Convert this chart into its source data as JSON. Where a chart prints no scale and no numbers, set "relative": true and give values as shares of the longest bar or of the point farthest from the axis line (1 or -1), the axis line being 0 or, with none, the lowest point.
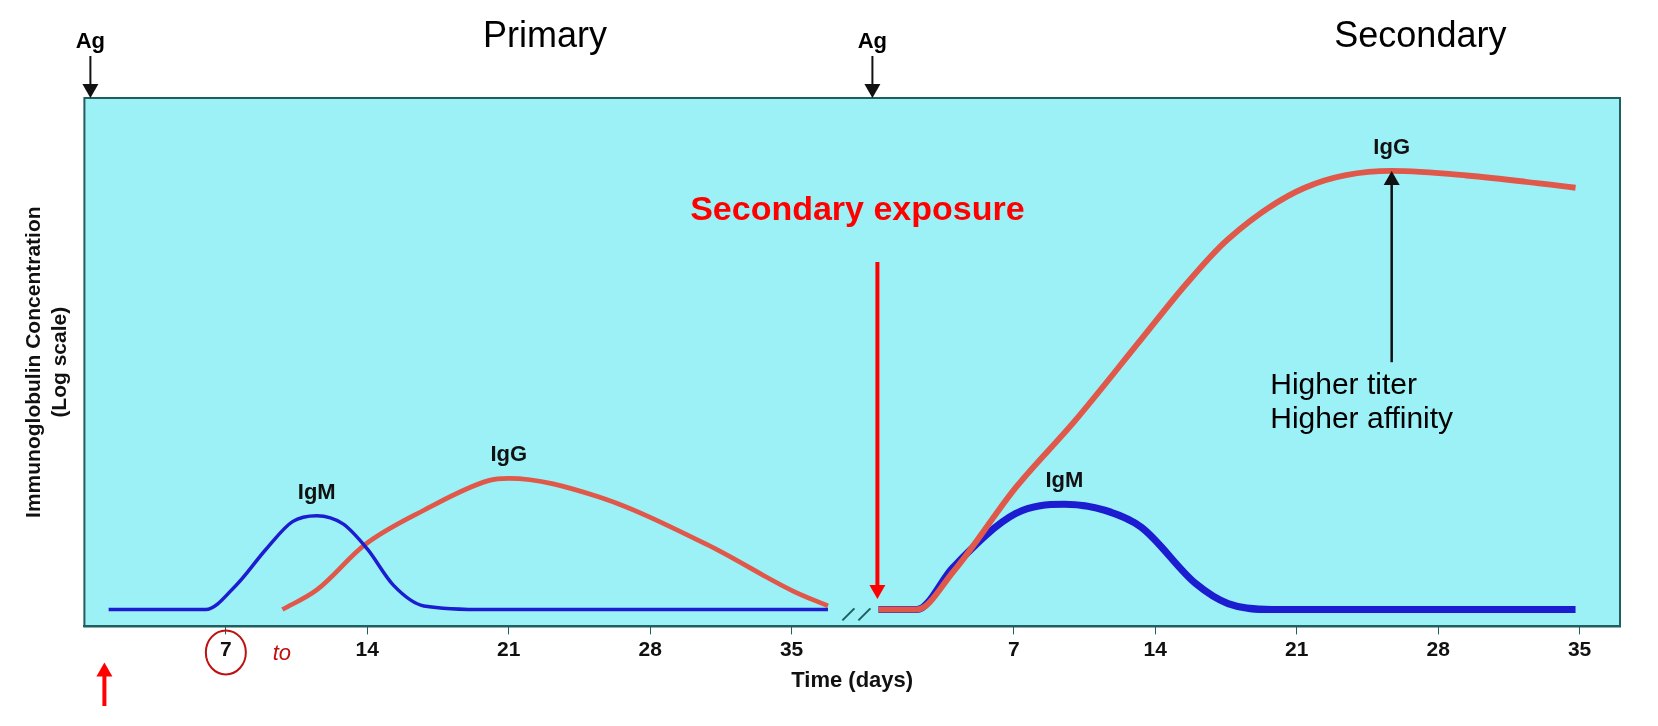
{
  "chart_data": {
    "type": "line",
    "relative": true,
    "xlabel": "Time (days)",
    "ylabel": "Immunoglobulin Concentration\n(Log scale)",
    "xlim": [
      0,
      76
    ],
    "xticks": [
      7,
      14,
      21,
      28,
      35
    ],
    "x2lim": [
      -39,
      37
    ],
    "x2ticks": [
      7,
      14,
      21,
      28,
      35
    ],
    "series": [
      {
        "name": "IgM",
        "color": "#1c1cd0",
        "x": [
          1.2,
          6,
          7.5,
          9,
          10.3,
          11.5,
          12.8,
          14,
          15.3,
          16.8,
          20,
          36.8
        ],
        "values": [
          0.037,
          0.037,
          0.09,
          0.17,
          0.23,
          0.243,
          0.225,
          0.17,
          0.09,
          0.045,
          0.037,
          0.037
        ]
      },
      {
        "name": "IgG",
        "color": "#e0584a",
        "x": [
          9.8,
          11.5,
          13.9,
          16.8,
          20,
          21,
          25.4,
          30.8,
          35.1,
          36.8
        ],
        "values": [
          0.037,
          0.08,
          0.18,
          0.255,
          0.32,
          0.325,
          0.285,
          0.18,
          0.077,
          0.045
        ]
      },
      {
        "name": "IgG",
        "color": "#e0584a",
        "axis": "x2",
        "x": [
          0.3,
          2.2,
          4,
          7.1,
          10,
          13.3,
          15.5,
          17.6,
          21.4,
          25.7,
          29.4,
          34.8
        ],
        "values": [
          0.037,
          0.037,
          0.12,
          0.305,
          0.45,
          0.63,
          0.75,
          0.85,
          0.963,
          1,
          0.99,
          0.963
        ]
      },
      {
        "name": "IgM",
        "color": "#1c1cd0",
        "axis": "x2",
        "x": [
          0.3,
          2.2,
          4,
          7.1,
          9.5,
          11.5,
          13.3,
          16,
          17.6,
          19.8,
          34.8
        ],
        "values": [
          0.037,
          0.037,
          0.13,
          0.248,
          0.268,
          0.255,
          0.218,
          0.094,
          0.05,
          0.037,
          0.037
        ]
      }
    ],
    "annotations": [
      "Ag",
      "Ag",
      "Primary",
      "Secondary",
      "Secondary exposure",
      "Higher titer\nHigher affinity",
      "to"
    ]
  }
}
